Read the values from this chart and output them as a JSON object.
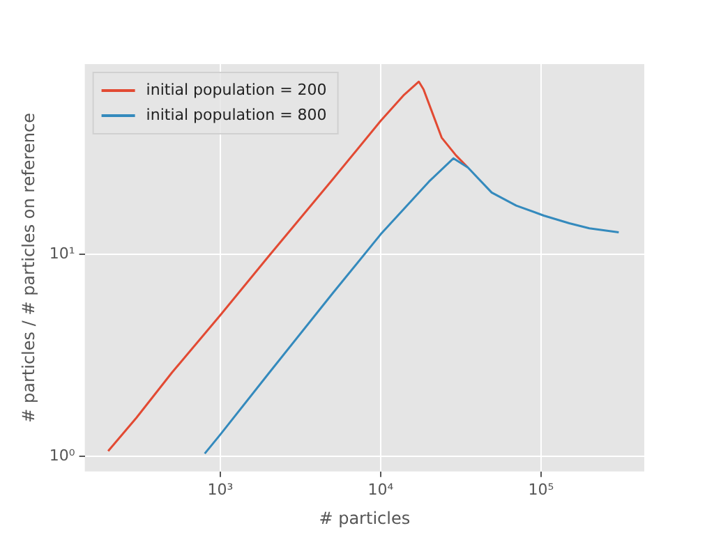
{
  "chart_data": {
    "type": "line",
    "xlabel": "# particles",
    "ylabel": "# particles / # particles on reference",
    "log": "xy",
    "grid": true,
    "legend": "top left",
    "marker": "none",
    "line_style": "solid",
    "xlim": [
      143,
      440000
    ],
    "ylim": [
      0.84,
      88
    ],
    "xticks": [
      {
        "value": 1000,
        "label": "10³"
      },
      {
        "value": 10000,
        "label": "10⁴"
      },
      {
        "value": 100000,
        "label": "10⁵"
      }
    ],
    "yticks": [
      {
        "value": 1,
        "label": "10⁰"
      },
      {
        "value": 10,
        "label": "10¹"
      }
    ],
    "series": [
      {
        "name": "initial population = 200",
        "color": "#e24a33",
        "x": [
          200,
          300,
          500,
          1000,
          2000,
          5000,
          10000,
          14000,
          17300,
          18500,
          20700,
          24000,
          29500,
          35000
        ],
        "values": [
          1.06,
          1.55,
          2.6,
          5.0,
          9.8,
          23.5,
          46,
          62,
          72,
          66,
          52,
          38,
          31,
          27
        ]
      },
      {
        "name": "initial population = 800",
        "color": "#348abd",
        "x": [
          800,
          1000,
          2000,
          5000,
          10000,
          20000,
          28400,
          35000,
          49200,
          70000,
          104000,
          150000,
          200000,
          305000
        ],
        "values": [
          1.03,
          1.28,
          2.57,
          6.4,
          12.6,
          23,
          30,
          27,
          20.3,
          17.5,
          15.6,
          14.3,
          13.5,
          12.9
        ]
      }
    ]
  }
}
